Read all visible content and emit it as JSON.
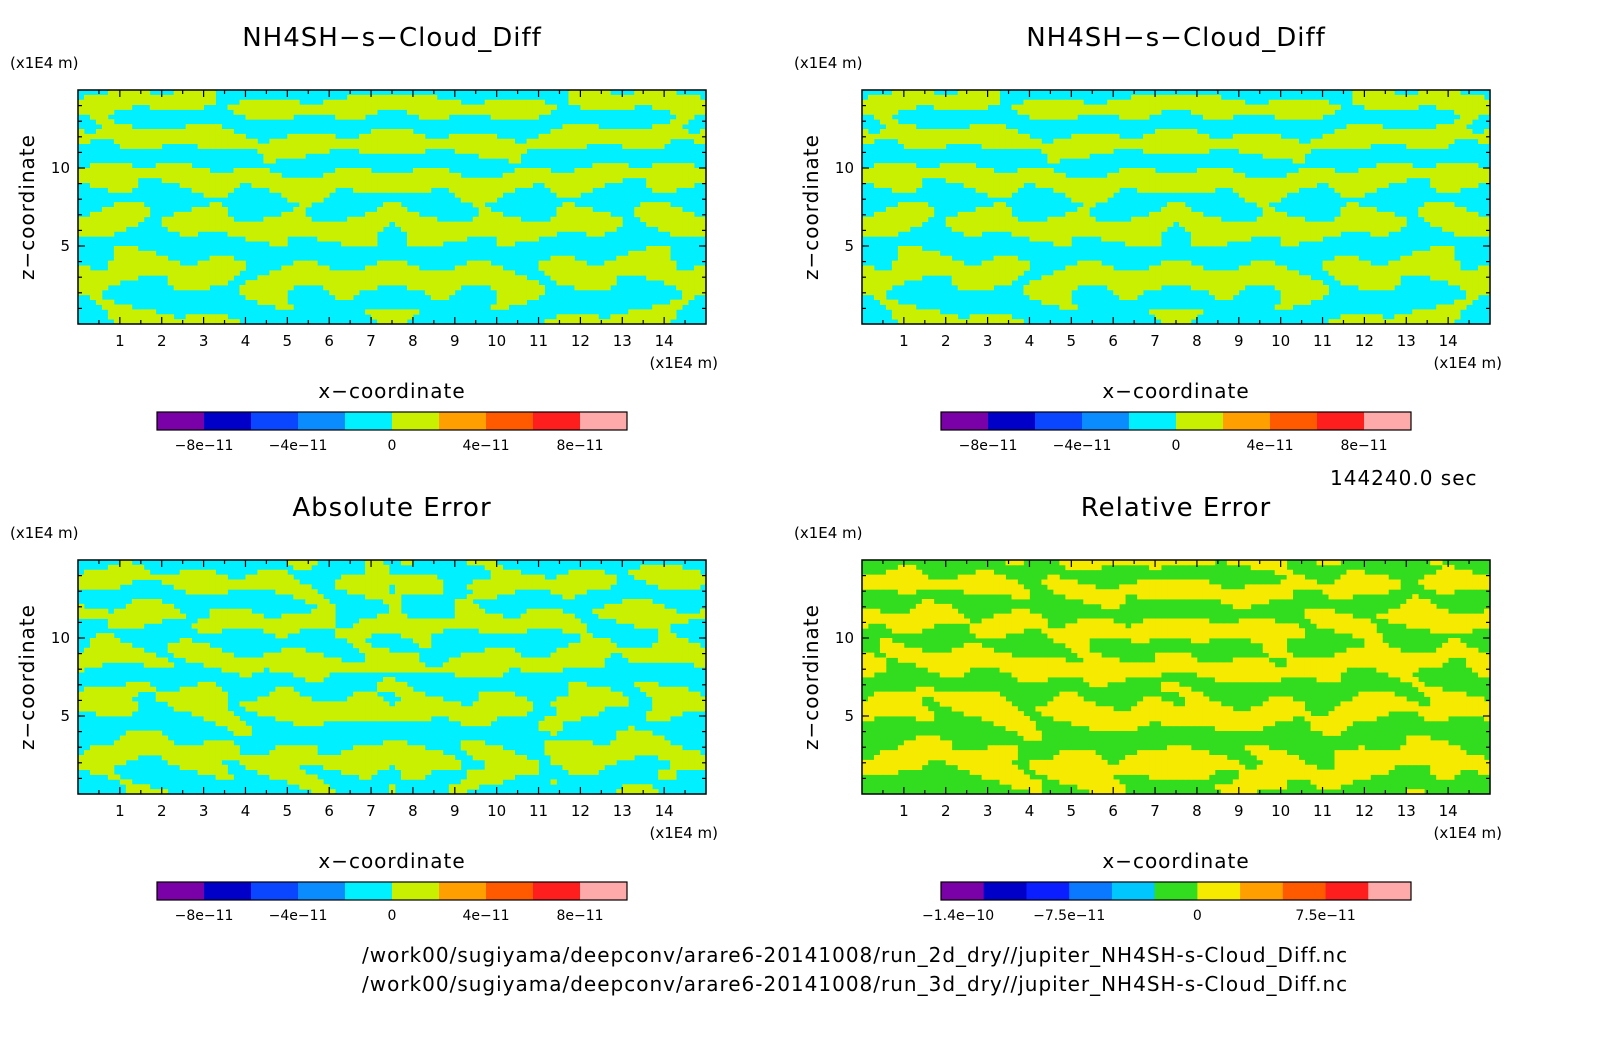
{
  "charts": {
    "x_unit": "(x1E4 m)",
    "z_unit": "(x1E4 m)",
    "xlabel": "x−coordinate",
    "ylabel": "z−coordinate",
    "timestamp": "144240.0 sec",
    "files": [
      "/work00/sugiyama/deepconv/arare6-20141008/run_2d_dry//jupiter_NH4SH-s-Cloud_Diff.nc",
      "/work00/sugiyama/deepconv/arare6-20141008/run_3d_dry//jupiter_NH4SH-s-Cloud_Diff.nc"
    ]
  },
  "colors": {
    "std_scale": [
      "#7a00a8",
      "#0000c8",
      "#0a46ff",
      "#0a8cff",
      "#00f0ff",
      "#c8f000",
      "#ffa000",
      "#ff5a00",
      "#ff1e1e",
      "#ffaaaa"
    ],
    "rel_scale": [
      "#7a00a8",
      "#0000c8",
      "#0a1eff",
      "#0a78ff",
      "#00c8ff",
      "#32dc1e",
      "#f5ea00",
      "#ffa000",
      "#ff5a00",
      "#ff1e1e",
      "#ffaaaa"
    ]
  },
  "chart_data": [
    {
      "type": "heatmap",
      "title": "NH4SH−s−Cloud_Diff",
      "xlabel": "x−coordinate",
      "ylabel": "z−coordinate",
      "xlim": [
        0,
        15
      ],
      "ylim": [
        0,
        15
      ],
      "x_ticks": [
        "1",
        "2",
        "3",
        "4",
        "5",
        "6",
        "7",
        "8",
        "9",
        "10",
        "11",
        "12",
        "13",
        "14"
      ],
      "y_ticks": [
        "5",
        "10"
      ],
      "colorbar_ticks": [
        "−8e−11",
        "−4e−11",
        "0",
        "4e−11",
        "8e−11"
      ],
      "colorbar_levels": [
        -1e-10,
        -8e-11,
        -6e-11,
        -4e-11,
        -2e-11,
        0,
        2e-11,
        4e-11,
        6e-11,
        8e-11,
        1e-10
      ],
      "dominant_levels": [
        "0",
        "4e−11"
      ]
    },
    {
      "type": "heatmap",
      "title": "NH4SH−s−Cloud_Diff",
      "xlabel": "x−coordinate",
      "ylabel": "z−coordinate",
      "xlim": [
        0,
        15
      ],
      "ylim": [
        0,
        15
      ],
      "x_ticks": [
        "1",
        "2",
        "3",
        "4",
        "5",
        "6",
        "7",
        "8",
        "9",
        "10",
        "11",
        "12",
        "13",
        "14"
      ],
      "y_ticks": [
        "5",
        "10"
      ],
      "colorbar_ticks": [
        "−8e−11",
        "−4e−11",
        "0",
        "4e−11",
        "8e−11"
      ],
      "colorbar_levels": [
        -1e-10,
        -8e-11,
        -6e-11,
        -4e-11,
        -2e-11,
        0,
        2e-11,
        4e-11,
        6e-11,
        8e-11,
        1e-10
      ],
      "dominant_levels": [
        "0",
        "4e−11"
      ]
    },
    {
      "type": "heatmap",
      "title": "Absolute Error",
      "xlabel": "x−coordinate",
      "ylabel": "z−coordinate",
      "xlim": [
        0,
        15
      ],
      "ylim": [
        0,
        15
      ],
      "x_ticks": [
        "1",
        "2",
        "3",
        "4",
        "5",
        "6",
        "7",
        "8",
        "9",
        "10",
        "11",
        "12",
        "13",
        "14"
      ],
      "y_ticks": [
        "5",
        "10"
      ],
      "colorbar_ticks": [
        "−8e−11",
        "−4e−11",
        "0",
        "4e−11",
        "8e−11"
      ],
      "colorbar_levels": [
        -1e-10,
        -8e-11,
        -6e-11,
        -4e-11,
        -2e-11,
        0,
        2e-11,
        4e-11,
        6e-11,
        8e-11,
        1e-10
      ],
      "dominant_levels": [
        "0",
        "4e−11"
      ]
    },
    {
      "type": "heatmap",
      "title": "Relative Error",
      "xlabel": "x−coordinate",
      "ylabel": "z−coordinate",
      "xlim": [
        0,
        15
      ],
      "ylim": [
        0,
        15
      ],
      "x_ticks": [
        "1",
        "2",
        "3",
        "4",
        "5",
        "6",
        "7",
        "8",
        "9",
        "10",
        "11",
        "12",
        "13",
        "14"
      ],
      "y_ticks": [
        "5",
        "10"
      ],
      "colorbar_ticks": [
        "−1.4e−10",
        "−7.5e−11",
        "0",
        "7.5e−11"
      ],
      "colorbar_levels": [
        -1.5e-10,
        -1.25e-10,
        -1e-10,
        -7.5e-11,
        -5e-11,
        -2.5e-11,
        0,
        2.5e-11,
        5e-11,
        7.5e-11,
        1e-10,
        1.25e-10
      ],
      "dominant_levels": [
        "0",
        "2.5e−11"
      ]
    }
  ]
}
